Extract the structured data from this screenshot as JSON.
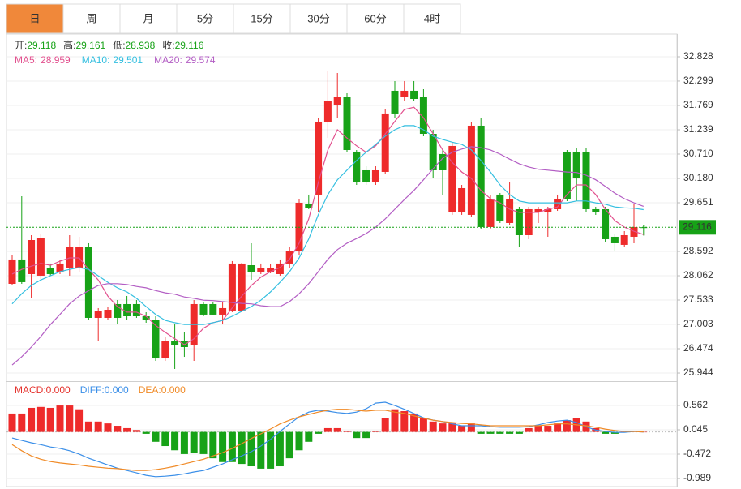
{
  "tabs": [
    "日",
    "周",
    "月",
    "5分",
    "15分",
    "30分",
    "60分",
    "4时"
  ],
  "active_tab": 0,
  "chart_data": [
    {
      "type": "candlestick",
      "ohlc_labels": [
        "开:",
        "高:",
        "低:",
        "收:"
      ],
      "up_color": "#ee2b2b",
      "down_color": "#17a217",
      "open": [
        27.886,
        28.416,
        28.098,
        28.063,
        28.239,
        28.151,
        28.239,
        28.239,
        28.681,
        27.145,
        27.145,
        27.445,
        27.445,
        27.445,
        27.18,
        27.092,
        26.262,
        26.65,
        26.65,
        26.562,
        27.445,
        27.445,
        27.216,
        27.304,
        27.304,
        28.292,
        28.151,
        28.151,
        28.098,
        28.328,
        28.592,
        29.616,
        29.828,
        31.416,
        31.769,
        31.946,
        30.763,
        30.357,
        30.092,
        30.322,
        32.087,
        31.946,
        32.087,
        31.946,
        31.151,
        30.71,
        29.439,
        29.439,
        29.387,
        31.328,
        29.122,
        29.828,
        29.21,
        29.51,
        28.945,
        29.439,
        29.439,
        29.51,
        30.745,
        30.745,
        30.745,
        29.51,
        29.51,
        28.91,
        28.734,
        28.91,
        29.118
      ],
      "high": [
        28.504,
        29.792,
        28.945,
        28.98,
        28.328,
        28.416,
        28.945,
        28.91,
        28.769,
        27.357,
        27.392,
        27.533,
        27.622,
        27.533,
        27.268,
        27.18,
        26.738,
        27.003,
        26.827,
        27.533,
        27.498,
        27.48,
        27.498,
        28.381,
        28.345,
        28.769,
        28.328,
        28.31,
        28.416,
        28.681,
        29.739,
        29.828,
        31.504,
        32.51,
        32.475,
        32.034,
        30.798,
        30.445,
        30.445,
        31.681,
        32.299,
        32.299,
        32.299,
        32.122,
        31.239,
        30.798,
        30.975,
        30.039,
        31.416,
        31.504,
        29.828,
        29.863,
        30.092,
        29.563,
        29.563,
        29.563,
        29.563,
        29.828,
        30.798,
        30.833,
        30.833,
        29.563,
        29.563,
        28.98,
        29.033,
        29.616,
        29.161
      ],
      "low": [
        27.851,
        27.886,
        27.569,
        27.975,
        28.063,
        28.098,
        28.063,
        28.151,
        27.092,
        26.65,
        27.092,
        27.003,
        27.092,
        27.145,
        27.039,
        26.209,
        26.209,
        26.033,
        26.297,
        26.209,
        27.18,
        27.198,
        27.003,
        27.269,
        27.269,
        27.975,
        28.098,
        28.116,
        28.063,
        28.239,
        28.504,
        29.51,
        29.439,
        31.063,
        31.504,
        30.745,
        30.039,
        30.039,
        30.039,
        30.269,
        31.504,
        31.857,
        31.857,
        31.098,
        30.18,
        29.828,
        29.387,
        29.387,
        29.334,
        29.086,
        29.086,
        29.21,
        29.157,
        28.681,
        28.857,
        29.21,
        28.91,
        29.474,
        29.686,
        29.686,
        29.439,
        29.387,
        28.804,
        28.592,
        28.681,
        28.769,
        28.938
      ],
      "close": [
        28.416,
        27.922,
        28.839,
        28.875,
        28.098,
        28.328,
        28.681,
        28.681,
        27.145,
        27.286,
        27.321,
        27.145,
        27.18,
        27.18,
        27.092,
        26.262,
        26.65,
        26.562,
        26.509,
        27.445,
        27.216,
        27.216,
        27.357,
        28.328,
        28.328,
        28.133,
        28.239,
        28.239,
        28.328,
        28.592,
        29.651,
        29.545,
        31.416,
        31.857,
        31.946,
        30.798,
        30.092,
        30.092,
        30.357,
        31.593,
        31.593,
        32.087,
        31.91,
        31.151,
        30.357,
        30.357,
        30.887,
        29.969,
        31.328,
        29.122,
        29.739,
        29.263,
        29.739,
        28.945,
        29.51,
        29.51,
        29.51,
        29.739,
        29.739,
        30.18,
        29.51,
        29.439,
        28.857,
        28.769,
        28.945,
        29.122,
        29.116
      ],
      "series": [
        {
          "name": "MA5:",
          "color": "#e2508e",
          "values": [
            28.1,
            28.2,
            28.27,
            28.33,
            28.29,
            28.38,
            28.45,
            28.45,
            28.2,
            27.97,
            27.62,
            27.39,
            27.27,
            27.27,
            27.18,
            26.98,
            26.83,
            26.69,
            26.56,
            26.69,
            26.92,
            27.04,
            27.09,
            27.36,
            27.62,
            27.85,
            28.03,
            28.15,
            28.24,
            28.42,
            28.77,
            29.3,
            30.09,
            30.8,
            31.24,
            31.06,
            30.89,
            30.75,
            30.89,
            31.15,
            31.42,
            31.68,
            31.73,
            31.5,
            31.15,
            30.8,
            30.53,
            30.32,
            30.18,
            29.92,
            29.74,
            29.65,
            29.51,
            29.44,
            29.44,
            29.44,
            29.51,
            29.56,
            29.83,
            30.04,
            30.04,
            29.83,
            29.51,
            29.26,
            29.12,
            29.03,
            28.959
          ]
        },
        {
          "name": "MA10:",
          "color": "#35bfe0",
          "values": [
            27.45,
            27.67,
            27.85,
            27.97,
            28.06,
            28.15,
            28.2,
            28.24,
            28.2,
            28.06,
            27.92,
            27.8,
            27.71,
            27.57,
            27.39,
            27.22,
            27.09,
            27.04,
            27.0,
            27.0,
            27.0,
            27.04,
            27.09,
            27.18,
            27.29,
            27.39,
            27.53,
            27.71,
            27.92,
            28.15,
            28.45,
            28.86,
            29.39,
            29.83,
            30.15,
            30.36,
            30.57,
            30.75,
            30.92,
            31.1,
            31.24,
            31.33,
            31.33,
            31.24,
            31.1,
            31.03,
            30.97,
            30.92,
            30.8,
            30.57,
            30.32,
            30.04,
            29.83,
            29.69,
            29.65,
            29.65,
            29.65,
            29.65,
            29.65,
            29.69,
            29.69,
            29.65,
            29.62,
            29.56,
            29.54,
            29.53,
            29.501
          ]
        },
        {
          "name": "MA20:",
          "color": "#b35ec4",
          "values": [
            26.12,
            26.3,
            26.51,
            26.74,
            27.0,
            27.22,
            27.45,
            27.62,
            27.74,
            27.85,
            27.89,
            27.89,
            27.87,
            27.83,
            27.8,
            27.74,
            27.69,
            27.66,
            27.6,
            27.57,
            27.53,
            27.52,
            27.5,
            27.48,
            27.46,
            27.45,
            27.41,
            27.39,
            27.39,
            27.5,
            27.67,
            27.89,
            28.15,
            28.42,
            28.63,
            28.77,
            28.87,
            28.98,
            29.12,
            29.3,
            29.51,
            29.72,
            29.92,
            30.15,
            30.39,
            30.62,
            30.75,
            30.82,
            30.87,
            30.85,
            30.8,
            30.71,
            30.6,
            30.5,
            30.43,
            30.38,
            30.36,
            30.34,
            30.32,
            30.31,
            30.25,
            30.15,
            30.01,
            29.86,
            29.74,
            29.65,
            29.574
          ]
        }
      ],
      "ylim": [
        25.768,
        33.322
      ],
      "yticks": [
        32.828,
        32.299,
        31.769,
        31.239,
        {
          "value": 30.71,
          "label": "30.710"
        },
        {
          "value": 30.18,
          "label": "30.180"
        },
        29.651,
        28.592,
        28.062,
        27.533,
        27.003,
        26.474,
        25.944
      ],
      "grid": true,
      "last_price_line": true
    },
    {
      "type": "macd",
      "series": [
        {
          "name": "MACD:",
          "kind": "bar",
          "color": "#e5322d",
          "up_color": "#ee2b2b",
          "down_color": "#17a217",
          "last_label": "0.000",
          "values": [
            0.39,
            0.39,
            0.51,
            0.53,
            0.51,
            0.56,
            0.56,
            0.48,
            0.22,
            0.22,
            0.18,
            0.13,
            0.08,
            0.04,
            -0.04,
            -0.21,
            -0.3,
            -0.39,
            -0.47,
            -0.44,
            -0.47,
            -0.56,
            -0.64,
            -0.64,
            -0.68,
            -0.73,
            -0.78,
            -0.78,
            -0.73,
            -0.56,
            -0.39,
            -0.21,
            -0.04,
            0.08,
            0.08,
            0.01,
            -0.13,
            -0.13,
            0.01,
            0.3,
            0.48,
            0.44,
            0.39,
            0.3,
            0.22,
            0.18,
            0.18,
            0.13,
            0.18,
            -0.04,
            -0.04,
            -0.04,
            -0.04,
            -0.04,
            0.08,
            0.13,
            0.13,
            0.18,
            0.25,
            0.3,
            0.22,
            0.08,
            -0.04,
            -0.04,
            0.01,
            0.01,
            0
          ]
        },
        {
          "name": "DIFF:",
          "kind": "line",
          "color": "#3b8fe8",
          "last_label": "0.000",
          "values": [
            -0.13,
            -0.18,
            -0.23,
            -0.27,
            -0.32,
            -0.35,
            -0.4,
            -0.47,
            -0.56,
            -0.63,
            -0.7,
            -0.77,
            -0.82,
            -0.87,
            -0.92,
            -0.95,
            -0.94,
            -0.92,
            -0.89,
            -0.85,
            -0.82,
            -0.75,
            -0.68,
            -0.59,
            -0.51,
            -0.42,
            -0.3,
            -0.16,
            0.01,
            0.17,
            0.32,
            0.42,
            0.46,
            0.44,
            0.41,
            0.39,
            0.42,
            0.49,
            0.61,
            0.63,
            0.56,
            0.48,
            0.39,
            0.3,
            0.25,
            0.22,
            0.17,
            0.13,
            0.13,
            0.13,
            0.11,
            0.1,
            0.1,
            0.1,
            0.11,
            0.15,
            0.2,
            0.23,
            0.25,
            0.2,
            0.11,
            0.04,
            0.01,
            -0.01,
            -0.01,
            0.01,
            0
          ]
        },
        {
          "name": "DEA:",
          "kind": "line",
          "color": "#f08a26",
          "last_label": "0.000",
          "values": [
            -0.27,
            -0.4,
            -0.51,
            -0.58,
            -0.63,
            -0.66,
            -0.68,
            -0.7,
            -0.73,
            -0.75,
            -0.77,
            -0.78,
            -0.8,
            -0.82,
            -0.82,
            -0.8,
            -0.77,
            -0.73,
            -0.68,
            -0.63,
            -0.58,
            -0.51,
            -0.44,
            -0.35,
            -0.25,
            -0.14,
            -0.04,
            0.06,
            0.17,
            0.25,
            0.32,
            0.37,
            0.42,
            0.46,
            0.48,
            0.48,
            0.46,
            0.44,
            0.46,
            0.46,
            0.42,
            0.39,
            0.34,
            0.29,
            0.25,
            0.22,
            0.2,
            0.18,
            0.17,
            0.15,
            0.13,
            0.13,
            0.13,
            0.13,
            0.13,
            0.13,
            0.15,
            0.17,
            0.17,
            0.15,
            0.13,
            0.1,
            0.06,
            0.03,
            0.01,
            0.01,
            0
          ]
        }
      ],
      "ylim": [
        -1.16,
        1.06
      ],
      "yticks": [
        0.562,
        0.045,
        -0.472,
        -0.989
      ],
      "grid": true
    }
  ]
}
